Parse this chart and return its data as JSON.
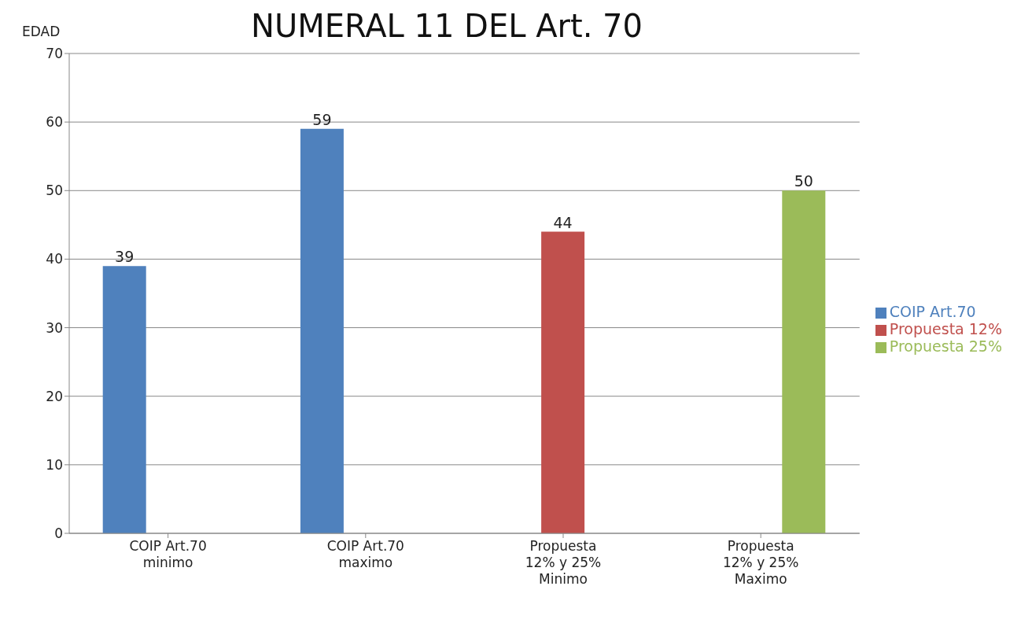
{
  "chart_data": {
    "type": "bar",
    "title": "NUMERAL 11 DEL Art. 70",
    "ylabel": "EDAD",
    "categories": [
      "COIP Art.70 minimo",
      "COIP Art.70 maximo",
      "Propuesta 12% y 25% Minimo",
      "Propuesta 12% y 25% Maximo"
    ],
    "series": [
      {
        "name": "COIP Art.70",
        "color": "#4f81bd",
        "values": [
          39,
          59,
          null,
          null
        ]
      },
      {
        "name": "Propuesta 12%",
        "color": "#c0504d",
        "values": [
          null,
          null,
          44,
          null
        ]
      },
      {
        "name": "Propuesta 25%",
        "color": "#9bbb59",
        "values": [
          null,
          null,
          null,
          50
        ]
      }
    ],
    "ylim": [
      0,
      70
    ],
    "yticks": [
      0,
      10,
      20,
      30,
      40,
      50,
      60,
      70
    ],
    "grid": "y",
    "legend": "right",
    "data_labels": true
  }
}
